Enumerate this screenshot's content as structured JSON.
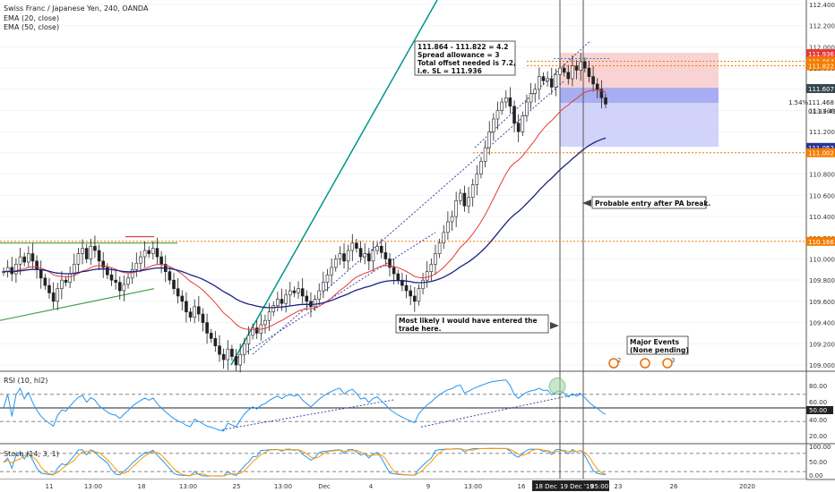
{
  "header": {
    "symbol_line": "Swiss Franc / Japanese Yen, 240, OANDA",
    "ema20_label": "EMA (20, close)",
    "ema50_label": "EMA (50, close)"
  },
  "annotations": {
    "calc_lines": [
      "111.864 - 111.822 = 4.2",
      "Spread allowance = 3",
      "Total offset needed is 7.2,",
      "i.e. SL = 111.936"
    ],
    "entry_note_lines": [
      "Most likely I would have entered the",
      "trade here."
    ],
    "pa_note": "Probable entry after PA break.",
    "events_lines": [
      "Major Events",
      "(None pending)"
    ],
    "event_badges": [
      "2",
      "3"
    ],
    "rr_label": "1.54%",
    "rr_price": "111.468",
    "countdown": "01:31:49"
  },
  "price_labels": [
    {
      "text": "111.936",
      "value": 111.936,
      "color": "#e53935"
    },
    {
      "text": "111.864",
      "value": 111.864,
      "color": "#f57c00"
    },
    {
      "text": "111.822",
      "value": 111.822,
      "color": "#f57c00"
    },
    {
      "text": "111.607",
      "value": 111.607,
      "color": "#37474f"
    },
    {
      "text": "111.052",
      "value": 111.052,
      "color": "#283593"
    },
    {
      "text": "111.002",
      "value": 111.002,
      "color": "#f57c00"
    },
    {
      "text": "110.166",
      "value": 110.166,
      "color": "#f57c00"
    }
  ],
  "rsi_panel": {
    "title": "RSI (10, hl2)",
    "ticks": [
      "80.00",
      "60.00",
      "40.00",
      "20.00"
    ],
    "level_label": "50.00"
  },
  "stoch_panel": {
    "title": "Stoch (14, 3, 1)",
    "ticks": [
      "100.00",
      "50.00",
      "0.00"
    ]
  },
  "x_axis": {
    "labels": [
      "11",
      "13:00",
      "18",
      "13:00",
      "25",
      "13:00",
      "Dec",
      "4",
      "9",
      "13:00",
      "16",
      "23",
      "26",
      "2020"
    ],
    "highlight_labels": [
      "18 Dec",
      "19 Dec '19",
      "05:00"
    ]
  },
  "colors": {
    "ema20": "#e53935",
    "ema50": "#1a237e",
    "bull_body": "#ffffff",
    "bear_body": "#222222",
    "stop_zone": "#f8c8c8",
    "target_zone": "#c5c8f6",
    "entry_zone": "#9fa5ef",
    "orange_level": "#f57c00",
    "trendline_teal": "#009688",
    "green_line": "#43a047",
    "rsi_line": "#2196f3",
    "stoch_k": "#2196f3",
    "stoch_d": "#ff9800"
  },
  "chart_data": {
    "type": "candlestick",
    "symbol": "Swiss Franc / Japanese Yen",
    "interval": "240",
    "source": "OANDA",
    "y_ticks": [
      112.4,
      112.2,
      112.0,
      111.8,
      111.6,
      111.4,
      111.2,
      111.0,
      110.8,
      110.6,
      110.4,
      110.2,
      110.0,
      109.8,
      109.6,
      109.4,
      109.2,
      109.0
    ],
    "ylim": [
      108.95,
      112.45
    ],
    "candles_hint": "approximate closes of 4h bars, left to right",
    "closes": [
      109.88,
      109.92,
      109.86,
      109.95,
      110.02,
      109.97,
      110.05,
      109.98,
      109.9,
      109.82,
      109.75,
      109.68,
      109.6,
      109.72,
      109.8,
      109.78,
      109.86,
      109.95,
      110.05,
      110.1,
      110.0,
      110.12,
      110.08,
      109.98,
      109.92,
      109.85,
      109.8,
      109.78,
      109.7,
      109.76,
      109.82,
      109.9,
      109.96,
      110.02,
      110.08,
      110.05,
      110.1,
      110.02,
      109.95,
      109.88,
      109.8,
      109.72,
      109.65,
      109.6,
      109.5,
      109.45,
      109.55,
      109.48,
      109.4,
      109.3,
      109.25,
      109.18,
      109.1,
      109.05,
      109.15,
      109.08,
      109.0,
      109.1,
      109.2,
      109.28,
      109.35,
      109.3,
      109.38,
      109.42,
      109.5,
      109.56,
      109.62,
      109.58,
      109.66,
      109.7,
      109.68,
      109.72,
      109.65,
      109.6,
      109.55,
      109.62,
      109.7,
      109.78,
      109.85,
      109.92,
      110.0,
      110.05,
      109.98,
      110.08,
      110.15,
      110.1,
      110.02,
      110.05,
      109.98,
      110.08,
      110.12,
      110.06,
      110.0,
      109.92,
      109.86,
      109.8,
      109.75,
      109.7,
      109.65,
      109.6,
      109.72,
      109.8,
      109.88,
      109.95,
      110.05,
      110.15,
      110.25,
      110.35,
      110.4,
      110.55,
      110.62,
      110.5,
      110.58,
      110.7,
      110.8,
      110.92,
      111.05,
      111.2,
      111.32,
      111.4,
      111.48,
      111.52,
      111.44,
      111.28,
      111.2,
      111.35,
      111.48,
      111.56,
      111.6,
      111.72,
      111.68,
      111.7,
      111.62,
      111.74,
      111.8,
      111.76,
      111.7,
      111.82,
      111.78,
      111.86,
      111.8,
      111.72,
      111.65,
      111.6,
      111.52,
      111.46
    ],
    "overlays": [
      {
        "name": "EMA (20, close)",
        "color": "#e53935"
      },
      {
        "name": "EMA (50, close)",
        "color": "#1a237e"
      }
    ],
    "levels": [
      111.936,
      111.864,
      111.822,
      111.607,
      111.052,
      111.002,
      110.166
    ],
    "rsi": {
      "period": 10,
      "source": "hl2",
      "ylim": [
        0,
        100
      ],
      "bands": [
        70,
        30
      ]
    },
    "stoch": {
      "params": [
        14,
        3,
        1
      ],
      "ylim": [
        0,
        100
      ]
    }
  }
}
